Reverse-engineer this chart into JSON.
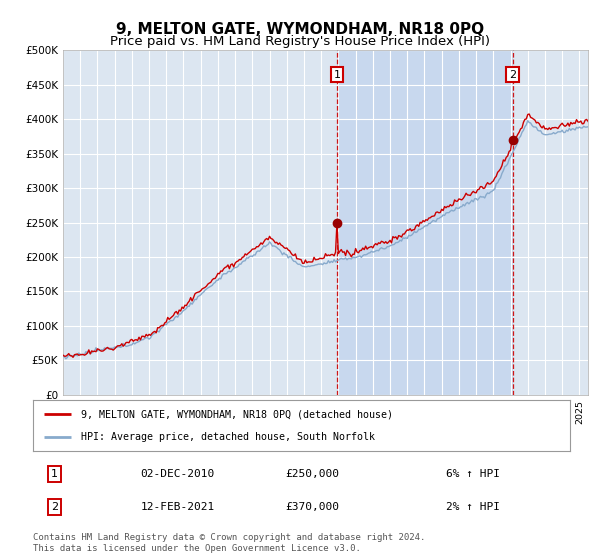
{
  "title": "9, MELTON GATE, WYMONDHAM, NR18 0PQ",
  "subtitle": "Price paid vs. HM Land Registry's House Price Index (HPI)",
  "title_fontsize": 11,
  "subtitle_fontsize": 9.5,
  "background_color": "#ffffff",
  "plot_bg_color": "#dce6f1",
  "shaded_bg_color": "#c8d8ee",
  "grid_color": "#ffffff",
  "ylim": [
    0,
    500000
  ],
  "yticks": [
    0,
    50000,
    100000,
    150000,
    200000,
    250000,
    300000,
    350000,
    400000,
    450000,
    500000
  ],
  "ytick_labels": [
    "£0",
    "£50K",
    "£100K",
    "£150K",
    "£200K",
    "£250K",
    "£300K",
    "£350K",
    "£400K",
    "£450K",
    "£500K"
  ],
  "xlim_start": 1995.0,
  "xlim_end": 2025.5,
  "transaction1_x": 2010.92,
  "transaction1_y": 250000,
  "transaction2_x": 2021.12,
  "transaction2_y": 370000,
  "line_red_color": "#cc0000",
  "line_blue_color": "#88aacc",
  "line_width": 1.0,
  "dot_color": "#990000",
  "legend_label_red": "9, MELTON GATE, WYMONDHAM, NR18 0PQ (detached house)",
  "legend_label_blue": "HPI: Average price, detached house, South Norfolk",
  "transaction1_date": "02-DEC-2010",
  "transaction1_price": "£250,000",
  "transaction1_hpi": "6% ↑ HPI",
  "transaction2_date": "12-FEB-2021",
  "transaction2_price": "£370,000",
  "transaction2_hpi": "2% ↑ HPI",
  "marker_box_color": "#cc0000",
  "dashed_line_color": "#cc0000",
  "footer_text": "Contains HM Land Registry data © Crown copyright and database right 2024.\nThis data is licensed under the Open Government Licence v3.0."
}
